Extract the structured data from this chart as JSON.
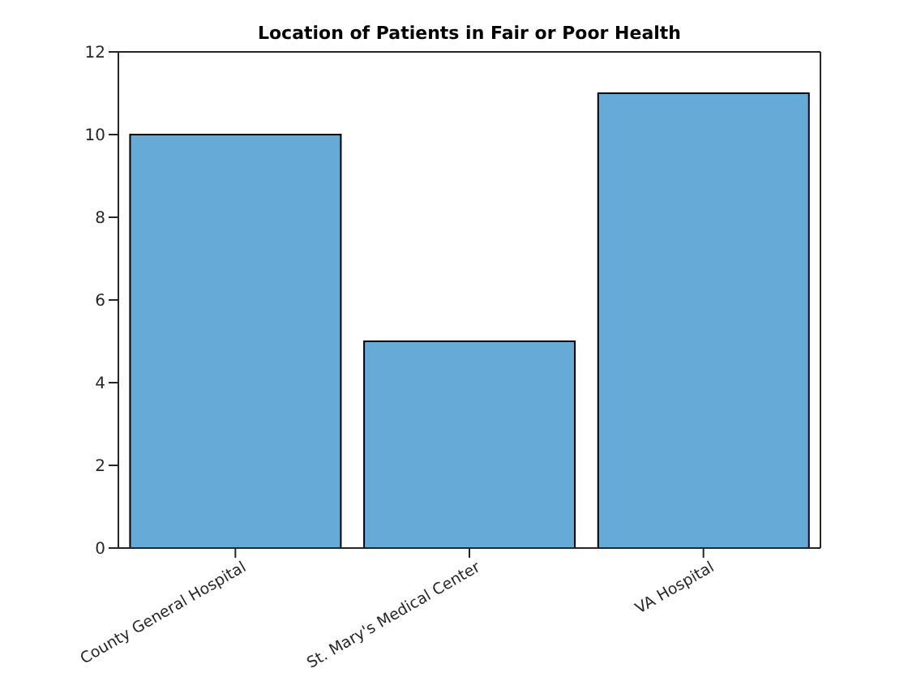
{
  "chart_data": {
    "type": "bar",
    "title": "Location of Patients in Fair or Poor Health",
    "categories": [
      "County General Hospital",
      "St. Mary's Medical Center",
      "VA Hospital"
    ],
    "values": [
      10,
      5,
      11
    ],
    "color": "#66aad7",
    "ylim": [
      0,
      12
    ],
    "yticks": [
      0,
      2,
      4,
      6,
      8,
      10,
      12
    ],
    "grid": false
  }
}
